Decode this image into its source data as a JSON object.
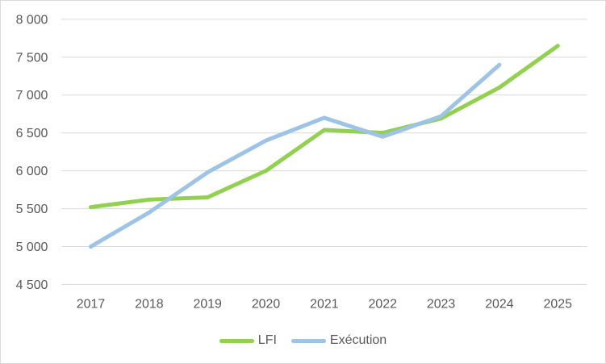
{
  "chart_data": {
    "type": "line",
    "categories": [
      "2017",
      "2018",
      "2019",
      "2020",
      "2021",
      "2022",
      "2023",
      "2024",
      "2025"
    ],
    "series": [
      {
        "name": "LFI",
        "color": "#92D050",
        "values": [
          5520,
          5620,
          5650,
          6000,
          6540,
          6500,
          6690,
          7100,
          7650
        ]
      },
      {
        "name": "Exécution",
        "color": "#9DC3E6",
        "values": [
          5000,
          5450,
          5980,
          6400,
          6700,
          6450,
          6720,
          7400,
          null
        ]
      }
    ],
    "title": "",
    "xlabel": "",
    "ylabel": "",
    "ylim": [
      4500,
      8000
    ],
    "ytick_step": 500,
    "ytick_labels": [
      "8 000",
      "7 500",
      "7 000",
      "6 500",
      "6 000",
      "5 500",
      "5 000",
      "4 500"
    ],
    "grid": true,
    "legend_position": "bottom"
  },
  "colors": {
    "background": "#FFFFFF",
    "border": "#D9D9D9",
    "gridline": "#D9D9D9",
    "axis_text": "#595959"
  },
  "style": {
    "line_width": 5,
    "axis_font_size": 16
  }
}
